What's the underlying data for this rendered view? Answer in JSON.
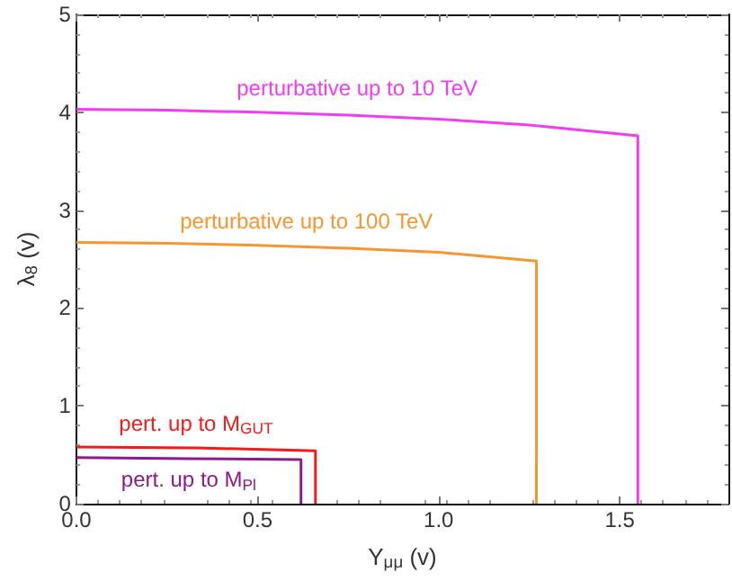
{
  "chart_data": {
    "type": "line",
    "xlabel": "Y$_{μμ}$ (v)",
    "ylabel": "λ$_{8}$ (v)",
    "xlim": [
      0,
      1.8
    ],
    "xticks": [
      {
        "value": 0,
        "label": "0.0"
      },
      0.5,
      {
        "value": 1,
        "label": "1.0"
      },
      1.5
    ],
    "ylim": [
      0,
      5
    ],
    "yticks": [
      0,
      1,
      2,
      3,
      4,
      5
    ],
    "series": [
      {
        "name": "perturbative up to 10 TeV",
        "color": "#f23cf2",
        "x": [
          0,
          0.25,
          0.5,
          0.75,
          1.0,
          1.25,
          1.55,
          1.55
        ],
        "values": [
          4.03,
          4.02,
          4.0,
          3.97,
          3.93,
          3.87,
          3.76,
          0
        ]
      },
      {
        "name": "perturbative up to 100 TeV",
        "color": "#f7962f",
        "x": [
          0,
          0.25,
          0.5,
          0.75,
          1.0,
          1.27,
          1.27
        ],
        "values": [
          2.67,
          2.66,
          2.64,
          2.61,
          2.57,
          2.48,
          0
        ]
      },
      {
        "name": "pert. up to M$_{GUT}$",
        "color": "#f21a1a",
        "x": [
          0,
          0.33,
          0.66,
          0.66
        ],
        "values": [
          0.58,
          0.57,
          0.54,
          0
        ]
      },
      {
        "name": "pert. up to M$_{Pl}$",
        "color": "#8b1a8b",
        "x": [
          0,
          0.31,
          0.62,
          0.62
        ],
        "values": [
          0.47,
          0.46,
          0.45,
          0
        ]
      }
    ]
  }
}
